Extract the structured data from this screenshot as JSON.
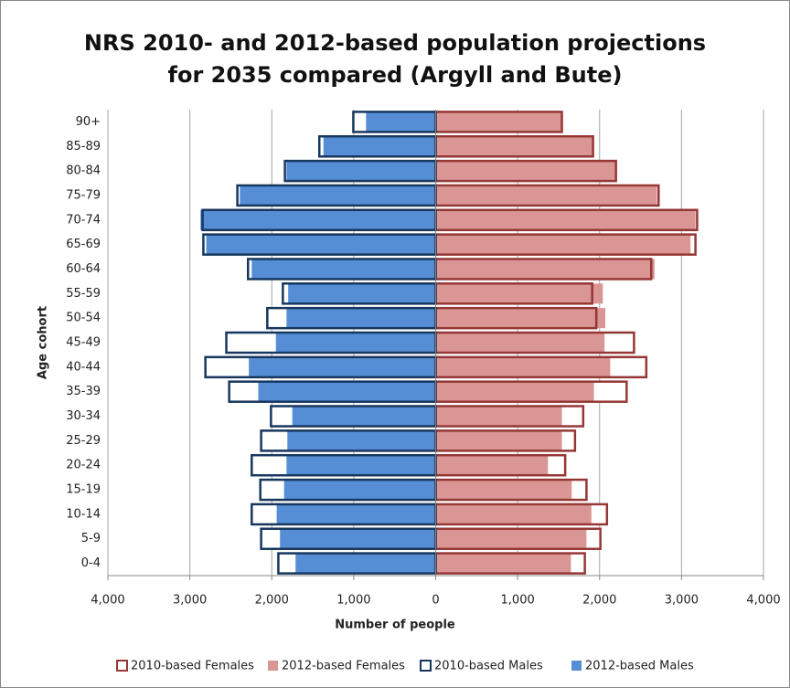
{
  "chart_data": {
    "type": "bar",
    "orientation": "horizontal",
    "title": [
      "NRS 2010- and 2012-based population projections",
      "for 2035 compared (Argyll and Bute)"
    ],
    "x_label": "Number of people",
    "y_label": "Age cohort",
    "categories": [
      "0-4",
      "5-9",
      "10-14",
      "15-19",
      "20-24",
      "25-29",
      "30-34",
      "35-39",
      "40-44",
      "45-49",
      "50-54",
      "55-59",
      "60-64",
      "65-69",
      "70-74",
      "75-79",
      "80-84",
      "85-89",
      "90+"
    ],
    "series": [
      {
        "name": "2010-based Females",
        "color": "#953735",
        "style": "outline",
        "values": [
          1820,
          2010,
          2090,
          1840,
          1580,
          1700,
          1800,
          2330,
          2570,
          2420,
          1960,
          1910,
          2630,
          3170,
          3190,
          2720,
          2200,
          1920,
          1540
        ]
      },
      {
        "name": "2012-based Females",
        "color": "#d99694",
        "style": "fill",
        "values": [
          1650,
          1840,
          1900,
          1660,
          1370,
          1540,
          1540,
          1930,
          2130,
          2060,
          2070,
          2040,
          2670,
          3110,
          3170,
          2700,
          2200,
          1910,
          1530
        ]
      },
      {
        "name": "2010-based Males",
        "color": "#17375e",
        "style": "outline",
        "values": [
          -1920,
          -2130,
          -2245,
          -2140,
          -2245,
          -2130,
          -2010,
          -2520,
          -2810,
          -2555,
          -2055,
          -1865,
          -2290,
          -2835,
          -2845,
          -2420,
          -1840,
          -1420,
          -1005
        ]
      },
      {
        "name": "2012-based Males",
        "color": "#558ed5",
        "style": "fill",
        "values": [
          -1710,
          -1900,
          -1940,
          -1850,
          -1820,
          -1810,
          -1750,
          -2165,
          -2280,
          -1950,
          -1820,
          -1800,
          -2245,
          -2800,
          -2870,
          -2390,
          -1820,
          -1370,
          -850
        ]
      }
    ],
    "xlim": [
      -4000,
      4000
    ],
    "xticks": [
      {
        "value": -4000,
        "label": "4,000"
      },
      {
        "value": -3000,
        "label": "3,000"
      },
      {
        "value": -2000,
        "label": "2,000"
      },
      {
        "value": -1000,
        "label": "1,000"
      },
      0,
      {
        "value": 1000,
        "label": "1,000"
      },
      {
        "value": 2000,
        "label": "2,000"
      },
      {
        "value": 3000,
        "label": "3,000"
      },
      {
        "value": 4000,
        "label": "4,000"
      }
    ],
    "grid": true,
    "legend": "bottom"
  }
}
